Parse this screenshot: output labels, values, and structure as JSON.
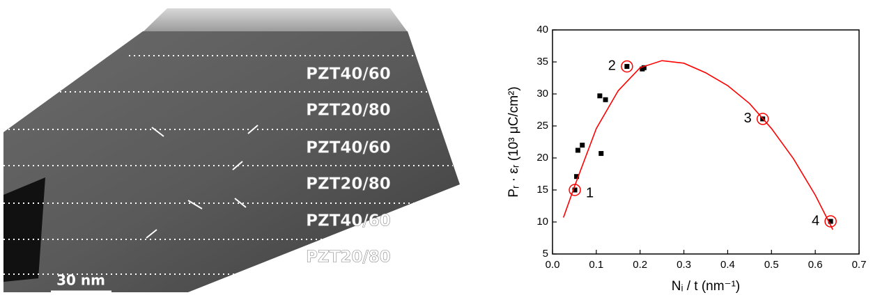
{
  "image": {
    "layers": [
      "PZT40/60",
      "PZT20/80",
      "PZT40/60",
      "PZT20/80",
      "PZT40/60",
      "PZT20/80"
    ],
    "scale_bar": "30 nm"
  },
  "chart_data": {
    "type": "scatter",
    "x_label": "Nᵢ / t (nm⁻¹)",
    "y_label": "Pᵣ · εᵣ (10³ μC/cm²)",
    "xlim": [
      0,
      0.7
    ],
    "xticks": [
      {
        "value": 0,
        "label": "0.0"
      },
      0.1,
      0.2,
      0.3,
      0.4,
      0.5,
      0.6,
      0.7
    ],
    "ylim": [
      5,
      40
    ],
    "yticks": [
      5,
      10,
      15,
      20,
      25,
      30,
      35,
      40
    ],
    "series": [
      {
        "color": "#000000",
        "x": [
          0.051,
          0.055,
          0.058,
          0.068,
          0.111,
          0.108,
          0.121,
          0.17,
          0.205,
          0.209,
          0.48,
          0.635
        ],
        "values": [
          15.0,
          17.1,
          21.2,
          22.0,
          20.7,
          29.7,
          29.1,
          34.3,
          33.9,
          34.1,
          26.1,
          10.1
        ]
      },
      {
        "type": "line",
        "color": "#ff0000",
        "x": [
          0.025,
          0.05,
          0.1,
          0.15,
          0.2,
          0.25,
          0.3,
          0.35,
          0.4,
          0.45,
          0.5,
          0.55,
          0.6,
          0.64
        ],
        "values": [
          10.7,
          15.5,
          24.6,
          30.5,
          34.1,
          35.2,
          34.8,
          33.3,
          31.3,
          28.5,
          24.6,
          19.9,
          14.2,
          8.8
        ]
      }
    ],
    "annotations": [
      {
        "text": "1",
        "x": 0.051,
        "y": 15.0
      },
      {
        "text": "2",
        "x": 0.17,
        "y": 34.3
      },
      {
        "text": "3",
        "x": 0.48,
        "y": 26.1
      },
      {
        "text": "4",
        "x": 0.635,
        "y": 10.1
      }
    ],
    "annotation_color": "#ff0000"
  }
}
